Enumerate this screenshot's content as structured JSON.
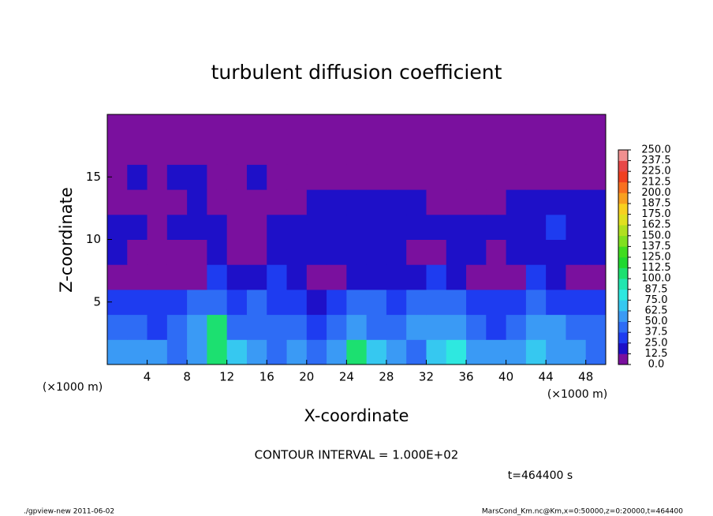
{
  "chart_data": {
    "type": "heatmap",
    "title": "turbulent diffusion coefficient",
    "x_label": "X-coordinate",
    "y_label": "Z-coordinate",
    "x_unit": "(×1000 m)",
    "y_unit": "(×1000 m)",
    "contour_interval": "CONTOUR INTERVAL = 1.000E+02",
    "time_label": "t=464400 s",
    "footer_left": "./gpview-new  2011-06-02",
    "footer_right": "MarsCond_Km.nc@Km,x=0:50000,z=0:20000,t=464400",
    "xlim": [
      0,
      50
    ],
    "ylim": [
      0,
      20
    ],
    "xticks": [
      4,
      8,
      12,
      16,
      20,
      24,
      28,
      32,
      36,
      40,
      44,
      48
    ],
    "yticks": [
      5,
      10,
      15
    ],
    "xbins": [
      0,
      2,
      4,
      6,
      8,
      10,
      12,
      14,
      16,
      18,
      20,
      22,
      24,
      26,
      28,
      30,
      32,
      34,
      36,
      38,
      40,
      42,
      44,
      46,
      48,
      50
    ],
    "zbins": [
      0,
      2,
      4,
      6,
      8,
      10,
      12,
      14,
      16,
      18,
      20
    ],
    "values": [
      [
        55,
        60,
        50,
        45,
        55,
        105,
        70,
        50,
        45,
        50,
        40,
        60,
        105,
        65,
        55,
        45,
        70,
        75,
        55,
        50,
        60,
        65,
        55,
        50,
        45
      ],
      [
        45,
        40,
        35,
        40,
        50,
        100,
        45,
        40,
        45,
        40,
        35,
        45,
        50,
        40,
        45,
        50,
        60,
        50,
        40,
        35,
        45,
        55,
        50,
        45,
        40
      ],
      [
        35,
        30,
        25,
        30,
        45,
        40,
        35,
        40,
        35,
        30,
        20,
        30,
        40,
        40,
        35,
        40,
        45,
        40,
        30,
        25,
        30,
        40,
        35,
        30,
        30
      ],
      [
        5,
        5,
        5,
        5,
        10,
        25,
        15,
        20,
        25,
        20,
        10,
        10,
        15,
        20,
        15,
        20,
        25,
        15,
        5,
        5,
        10,
        25,
        15,
        10,
        5
      ],
      [
        15,
        5,
        5,
        5,
        5,
        15,
        5,
        5,
        15,
        15,
        20,
        15,
        20,
        15,
        15,
        10,
        5,
        15,
        15,
        10,
        15,
        20,
        20,
        20,
        15
      ],
      [
        20,
        15,
        5,
        15,
        15,
        15,
        5,
        5,
        15,
        15,
        15,
        20,
        20,
        20,
        20,
        15,
        15,
        15,
        15,
        15,
        20,
        20,
        25,
        20,
        20
      ],
      [
        5,
        5,
        5,
        5,
        15,
        5,
        5,
        5,
        5,
        5,
        15,
        15,
        20,
        20,
        15,
        15,
        5,
        5,
        5,
        5,
        15,
        15,
        15,
        15,
        15
      ],
      [
        5,
        15,
        5,
        15,
        15,
        5,
        5,
        15,
        5,
        5,
        5,
        5,
        5,
        5,
        5,
        5,
        5,
        5,
        5,
        5,
        5,
        5,
        5,
        5,
        5
      ],
      [
        0,
        0,
        0,
        0,
        0,
        0,
        0,
        0,
        0,
        0,
        0,
        0,
        0,
        0,
        0,
        0,
        0,
        0,
        0,
        0,
        0,
        0,
        0,
        0,
        0
      ],
      [
        0,
        0,
        0,
        0,
        0,
        0,
        0,
        0,
        0,
        0,
        0,
        0,
        0,
        0,
        0,
        0,
        0,
        0,
        0,
        0,
        0,
        0,
        0,
        0,
        0
      ]
    ],
    "levels": [
      {
        "value": 0,
        "label": "0.0"
      },
      {
        "value": 12.5,
        "label": "12.5"
      },
      {
        "value": 25,
        "label": "25.0"
      },
      {
        "value": 37.5,
        "label": "37.5"
      },
      {
        "value": 50,
        "label": "50.0"
      },
      {
        "value": 62.5,
        "label": "62.5"
      },
      {
        "value": 75,
        "label": "75.0"
      },
      {
        "value": 87.5,
        "label": "87.5"
      },
      {
        "value": 100,
        "label": "100.0"
      },
      {
        "value": 112.5,
        "label": "112.5"
      },
      {
        "value": 125,
        "label": "125.0"
      },
      {
        "value": 137.5,
        "label": "137.5"
      },
      {
        "value": 150,
        "label": "150.0"
      },
      {
        "value": 162.5,
        "label": "162.5"
      },
      {
        "value": 175,
        "label": "175.0"
      },
      {
        "value": 187.5,
        "label": "187.5"
      },
      {
        "value": 200,
        "label": "200.0"
      },
      {
        "value": 212.5,
        "label": "212.5"
      },
      {
        "value": 225,
        "label": "225.0"
      },
      {
        "value": 237.5,
        "label": "237.5"
      },
      {
        "value": 250,
        "label": "250.0"
      }
    ],
    "colors": [
      "#7a109e",
      "#1e10c8",
      "#1e3cf0",
      "#2e6cf5",
      "#3a9af5",
      "#36c8f0",
      "#2ee8e0",
      "#22e6b0",
      "#1ce070",
      "#20d830",
      "#40dc20",
      "#80e020",
      "#b0e020",
      "#e0e020",
      "#f8d020",
      "#f8a020",
      "#f87020",
      "#f04020",
      "#e84848",
      "#f09090"
    ]
  }
}
